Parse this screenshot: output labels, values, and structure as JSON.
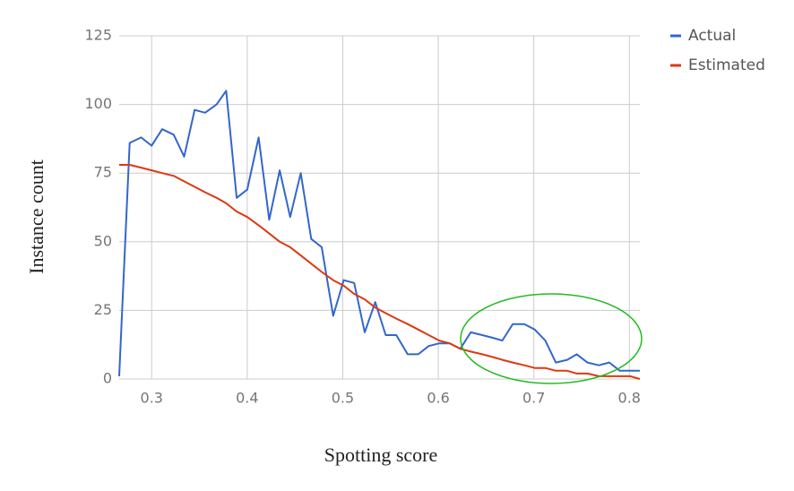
{
  "chart_data": {
    "type": "line",
    "x_label": "Spotting score",
    "y_label": "Instance count",
    "x": [
      0.266,
      0.277,
      0.289,
      0.3,
      0.311,
      0.323,
      0.334,
      0.345,
      0.356,
      0.368,
      0.378,
      0.389,
      0.4,
      0.412,
      0.423,
      0.434,
      0.445,
      0.456,
      0.467,
      0.478,
      0.49,
      0.501,
      0.512,
      0.523,
      0.534,
      0.545,
      0.556,
      0.568,
      0.579,
      0.59,
      0.601,
      0.612,
      0.623,
      0.634,
      0.646,
      0.657,
      0.667,
      0.678,
      0.69,
      0.701,
      0.712,
      0.723,
      0.735,
      0.745,
      0.756,
      0.768,
      0.779,
      0.79,
      0.801,
      0.811
    ],
    "series": [
      {
        "name": "Actual",
        "color": "#3366cc",
        "values": [
          1,
          86,
          88,
          85,
          91,
          89,
          81,
          98,
          97,
          100,
          105,
          66,
          69,
          88,
          58,
          76,
          59,
          75,
          51,
          48,
          23,
          36,
          35,
          17,
          28,
          16,
          16,
          9,
          9,
          12,
          13,
          13,
          11,
          17,
          16,
          15,
          14,
          20,
          20,
          18,
          14,
          6,
          7,
          9,
          6,
          5,
          6,
          3,
          3,
          3
        ]
      },
      {
        "name": "Estimated",
        "color": "#dc3912",
        "values": [
          78,
          78,
          77,
          76,
          75,
          74,
          72,
          70,
          68,
          66,
          64,
          61,
          59,
          56,
          53,
          50,
          48,
          45,
          42,
          39,
          36,
          34,
          31,
          29,
          26,
          24,
          22,
          20,
          18,
          16,
          14,
          13,
          11,
          10,
          9,
          8,
          7,
          6,
          5,
          4,
          4,
          3,
          3,
          2,
          2,
          1,
          1,
          1,
          1,
          0
        ]
      }
    ],
    "xlim": [
      0.266,
      0.811
    ],
    "xticks": [
      0.3,
      0.4,
      0.5,
      0.6,
      0.7,
      0.8
    ],
    "ylim": [
      0,
      125
    ],
    "yticks": [
      0,
      25,
      50,
      75,
      100,
      125
    ],
    "grid": true,
    "legend": "right"
  }
}
